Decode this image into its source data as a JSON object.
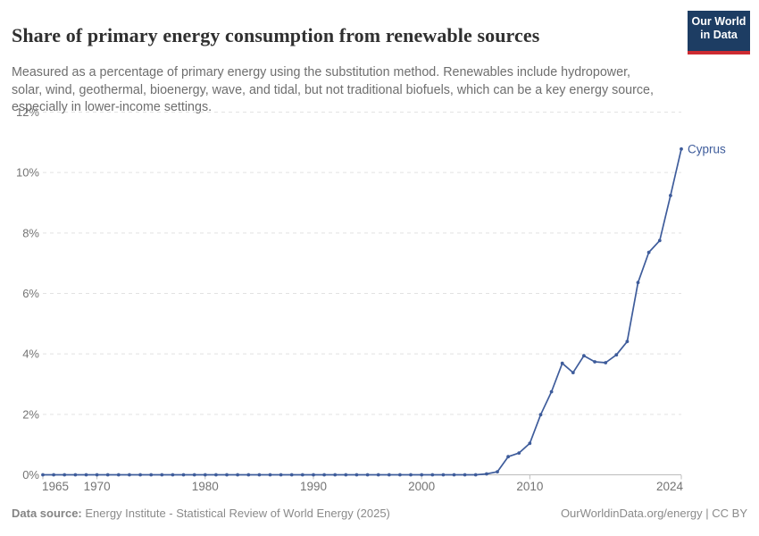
{
  "header": {
    "title": "Share of primary energy consumption from renewable sources",
    "subtitle": "Measured as a percentage of primary energy using the substitution method. Renewables include hydropower, solar, wind, geothermal, bioenergy, wave, and tidal, but not traditional biofuels, which can be a key energy source, especially in lower-income settings.",
    "logo": {
      "line1": "Our World",
      "line2": "in Data",
      "bg_color": "#1d3d63",
      "stripe_color": "#cd2b32"
    }
  },
  "chart_data": {
    "type": "line",
    "title": "Share of primary energy consumption from renewable sources",
    "xlabel": "",
    "ylabel": "",
    "xlim": [
      1965,
      2024
    ],
    "ylim": [
      0,
      12
    ],
    "grid": "horizontal-dashed",
    "legend_position": "end-of-line-label",
    "end_label": "Cyprus",
    "x_ticks": [
      1965,
      1970,
      1980,
      1990,
      2000,
      2010,
      2024
    ],
    "x_tick_labels": [
      "1965",
      "1970",
      "1980",
      "1990",
      "2000",
      "2010",
      "2024"
    ],
    "y_ticks": [
      0,
      2,
      4,
      6,
      8,
      10,
      12
    ],
    "y_tick_labels": [
      "0%",
      "2%",
      "4%",
      "6%",
      "8%",
      "10%",
      "12%"
    ],
    "series": [
      {
        "name": "Cyprus",
        "color": "#3e5c9b",
        "x": [
          1965,
          1966,
          1967,
          1968,
          1969,
          1970,
          1971,
          1972,
          1973,
          1974,
          1975,
          1976,
          1977,
          1978,
          1979,
          1980,
          1981,
          1982,
          1983,
          1984,
          1985,
          1986,
          1987,
          1988,
          1989,
          1990,
          1991,
          1992,
          1993,
          1994,
          1995,
          1996,
          1997,
          1998,
          1999,
          2000,
          2001,
          2002,
          2003,
          2004,
          2005,
          2006,
          2007,
          2008,
          2009,
          2010,
          2011,
          2012,
          2013,
          2014,
          2015,
          2016,
          2017,
          2018,
          2019,
          2020,
          2021,
          2022,
          2023,
          2024
        ],
        "values": [
          0,
          0,
          0,
          0,
          0,
          0,
          0,
          0,
          0,
          0,
          0,
          0,
          0,
          0,
          0,
          0,
          0,
          0,
          0,
          0,
          0,
          0,
          0,
          0,
          0,
          0,
          0,
          0,
          0,
          0,
          0,
          0,
          0,
          0,
          0,
          0,
          0,
          0,
          0,
          0,
          0,
          0.03,
          0.1,
          0.6,
          0.72,
          1.04,
          1.99,
          2.75,
          3.69,
          3.38,
          3.94,
          3.74,
          3.71,
          3.97,
          4.41,
          6.36,
          7.36,
          7.75,
          9.24,
          10.78
        ]
      }
    ]
  },
  "footer": {
    "source_label": "Data source:",
    "source_text": " Energy Institute - Statistical Review of World Energy (2025)",
    "rights": "OurWorldinData.org/energy | CC BY"
  }
}
